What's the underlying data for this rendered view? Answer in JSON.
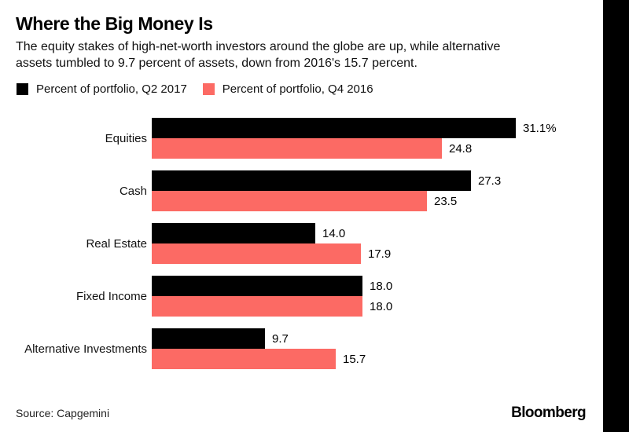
{
  "header": {
    "title": "Where the Big Money Is",
    "subtitle_line1": "The equity stakes of high-net-worth investors around the globe are up, while alternative",
    "subtitle_line2": "assets tumbled to 9.7 percent of assets, down from 2016's 15.7 percent."
  },
  "chart_data": {
    "type": "bar",
    "orientation": "horizontal",
    "grid": false,
    "legend_position": "top-left",
    "xlim": [
      0,
      38
    ],
    "categories": [
      "Equities",
      "Cash",
      "Real Estate",
      "Fixed Income",
      "Alternative Investments"
    ],
    "series": [
      {
        "name": "Percent of portfolio, Q2 2017",
        "color": "#000000",
        "values": [
          31.1,
          27.3,
          14.0,
          18.0,
          9.7
        ],
        "value_labels": [
          "31.1%",
          "27.3",
          "14.0",
          "18.0",
          "9.7"
        ]
      },
      {
        "name": "Percent of portfolio, Q4 2016",
        "color": "#fc6a64",
        "values": [
          24.8,
          23.5,
          17.9,
          18.0,
          15.7
        ],
        "value_labels": [
          "24.8",
          "23.5",
          "17.9",
          "18.0",
          "15.7"
        ]
      }
    ]
  },
  "footer": {
    "source": "Source: Capgemini",
    "brand": "Bloomberg"
  }
}
